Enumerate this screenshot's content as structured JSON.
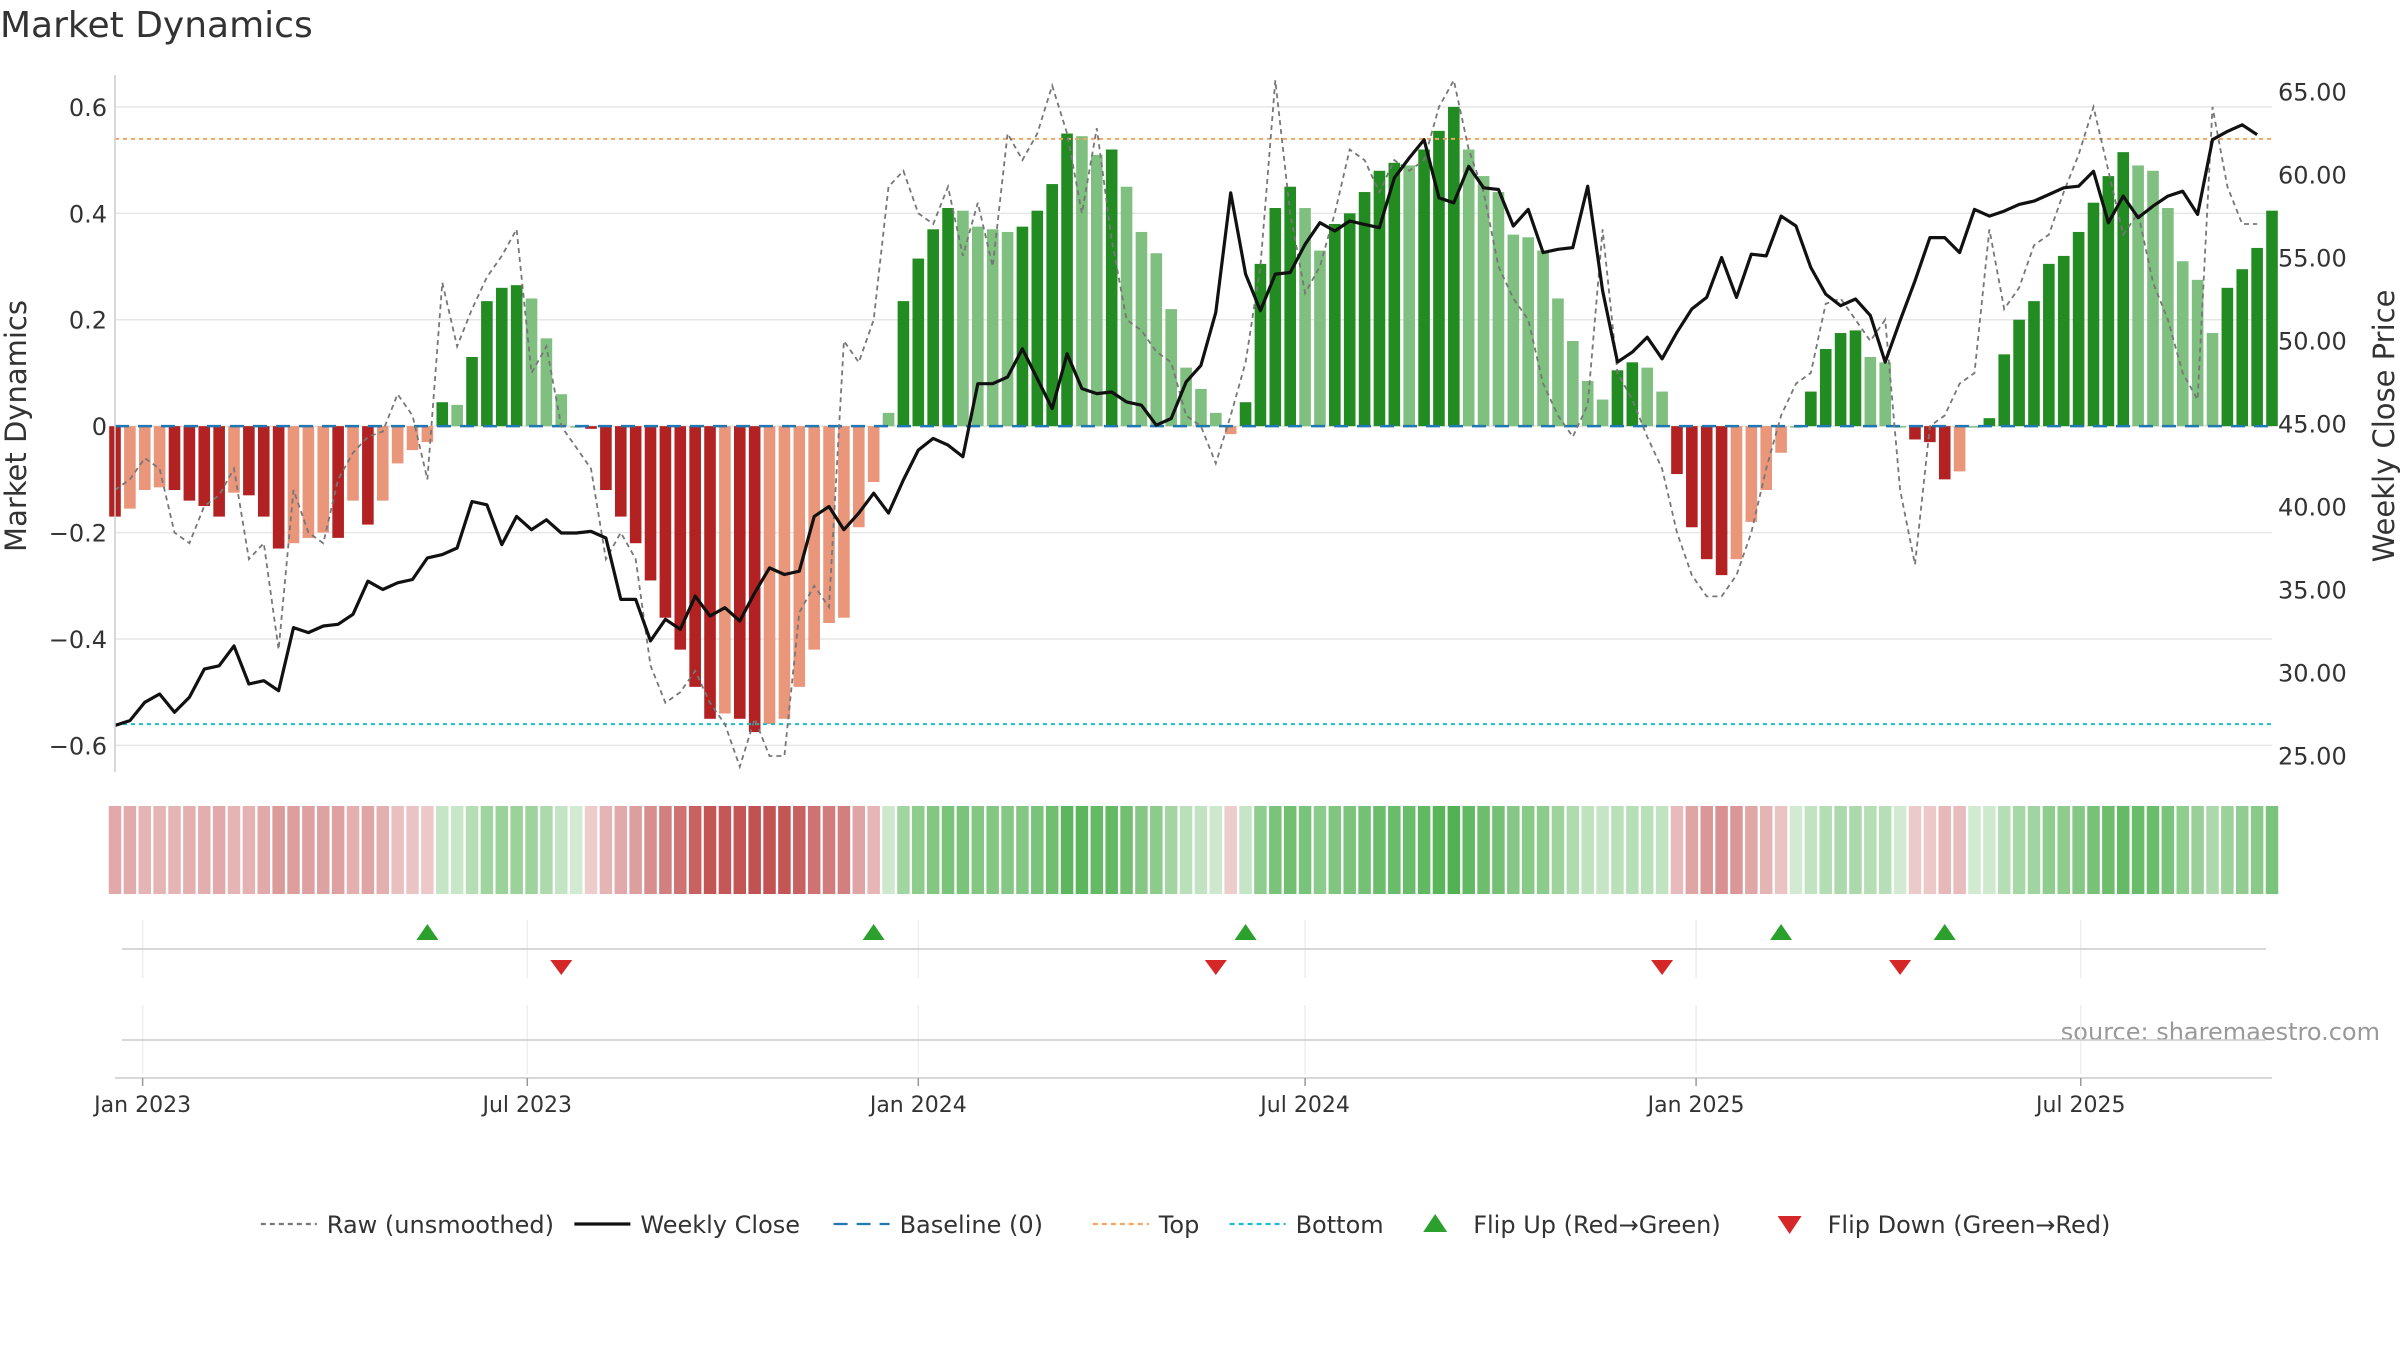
{
  "chart_data": {
    "type": "bar",
    "title": "Market Dynamics",
    "ylabel": "Market Dynamics",
    "y2label": "Weekly Close Price",
    "ylim": [
      -0.65,
      0.66
    ],
    "y2lim": [
      24.0,
      66.0
    ],
    "yticks": [
      -0.6,
      -0.4,
      -0.2,
      0,
      0.2,
      0.4,
      0.6
    ],
    "ytick_labels": [
      "−0.6",
      "−0.4",
      "−0.2",
      "0",
      "0.2",
      "0.4",
      "0.6"
    ],
    "y2ticks": [
      25,
      30,
      35,
      40,
      45,
      50,
      55,
      60,
      65
    ],
    "y2tick_labels": [
      "25.00",
      "30.00",
      "35.00",
      "40.00",
      "45.00",
      "50.00",
      "55.00",
      "60.00",
      "65.00"
    ],
    "x_range": [
      "2022-12-19",
      "2025-09-29"
    ],
    "first_week": "2022-12-19",
    "xticks": [
      {
        "date": "2023-01-01",
        "label": "Jan 2023"
      },
      {
        "date": "2023-07-01",
        "label": "Jul 2023"
      },
      {
        "date": "2024-01-01",
        "label": "Jan 2024"
      },
      {
        "date": "2024-07-01",
        "label": "Jul 2024"
      },
      {
        "date": "2025-01-01",
        "label": "Jan 2025"
      },
      {
        "date": "2025-07-01",
        "label": "Jul 2025"
      }
    ],
    "top_level": 0.54,
    "bottom_level": -0.56,
    "baseline": 0,
    "grid": true,
    "legend_position": "bottom-center",
    "source_note": "source: sharemaestro.com",
    "colors": {
      "strong_green": "#228b22",
      "light_green": "#7fbf7f",
      "strong_red": "#b22222",
      "light_red": "#e9967a",
      "close_line": "#111111",
      "raw_line": "#777777",
      "baseline": "#1f77b4",
      "top": "#f4a460",
      "bottom": "#17becf",
      "flip_up": "#2ca02c",
      "flip_down": "#d62728",
      "regime_green": "#2ca02c",
      "regime_red": "#b22222"
    },
    "series": [
      {
        "name": "Market Dynamics (smoothed)",
        "values": [
          -0.17,
          -0.155,
          -0.12,
          -0.115,
          -0.12,
          -0.14,
          -0.15,
          -0.17,
          -0.125,
          -0.13,
          -0.17,
          -0.23,
          -0.22,
          -0.21,
          -0.2,
          -0.21,
          -0.14,
          -0.185,
          -0.14,
          -0.07,
          -0.045,
          -0.03,
          0.045,
          0.04,
          0.13,
          0.235,
          0.26,
          0.265,
          0.24,
          0.165,
          0.06,
          0,
          -0.005,
          -0.12,
          -0.17,
          -0.22,
          -0.29,
          -0.36,
          -0.42,
          -0.49,
          -0.55,
          -0.54,
          -0.55,
          -0.575,
          -0.56,
          -0.55,
          -0.49,
          -0.42,
          -0.37,
          -0.36,
          -0.19,
          -0.105,
          0.025,
          0.235,
          0.315,
          0.37,
          0.41,
          0.405,
          0.375,
          0.37,
          0.365,
          0.375,
          0.405,
          0.455,
          0.55,
          0.545,
          0.51,
          0.52,
          0.45,
          0.365,
          0.325,
          0.22,
          0.11,
          0.07,
          0.025,
          -0.015,
          0.045,
          0.305,
          0.41,
          0.45,
          0.41,
          0.33,
          0.38,
          0.4,
          0.44,
          0.48,
          0.495,
          0.49,
          0.52,
          0.555,
          0.6,
          0.52,
          0.47,
          0.44,
          0.36,
          0.355,
          0.33,
          0.24,
          0.16,
          0.085,
          0.05,
          0.105,
          0.12,
          0.11,
          0.065,
          -0.09,
          -0.19,
          -0.25,
          -0.28,
          -0.25,
          -0.18,
          -0.12,
          -0.05,
          0,
          0.065,
          0.145,
          0.175,
          0.18,
          0.13,
          0.12,
          0,
          -0.025,
          -0.03,
          -0.1,
          -0.085,
          0,
          0.015,
          0.135,
          0.2,
          0.235,
          0.305,
          0.32,
          0.365,
          0.42,
          0.47,
          0.515,
          0.49,
          0.48,
          0.41,
          0.31,
          0.275,
          0.175,
          0.26,
          0.295,
          0.335,
          0.405
        ]
      },
      {
        "name": "Raw (unsmoothed)",
        "values": [
          -0.12,
          -0.1,
          -0.06,
          -0.08,
          -0.2,
          -0.22,
          -0.15,
          -0.13,
          -0.08,
          -0.25,
          -0.22,
          -0.42,
          -0.12,
          -0.2,
          -0.22,
          -0.1,
          -0.05,
          -0.02,
          -0.01,
          0.06,
          0.02,
          -0.1,
          0.27,
          0.15,
          0.22,
          0.28,
          0.32,
          0.37,
          0.1,
          0.15,
          0,
          -0.04,
          -0.08,
          -0.25,
          -0.2,
          -0.25,
          -0.45,
          -0.52,
          -0.5,
          -0.46,
          -0.52,
          -0.56,
          -0.64,
          -0.55,
          -0.62,
          -0.62,
          -0.35,
          -0.3,
          -0.34,
          0.16,
          0.12,
          0.2,
          0.45,
          0.48,
          0.4,
          0.38,
          0.45,
          0.32,
          0.42,
          0.3,
          0.55,
          0.5,
          0.55,
          0.64,
          0.55,
          0.4,
          0.56,
          0.35,
          0.2,
          0.18,
          0.14,
          0.12,
          0.02,
          0,
          -0.07,
          0.02,
          0.12,
          0.3,
          0.65,
          0.4,
          0.25,
          0.3,
          0.4,
          0.52,
          0.5,
          0.44,
          0.5,
          0.48,
          0.5,
          0.6,
          0.65,
          0.52,
          0.44,
          0.3,
          0.24,
          0.2,
          0.08,
          0.02,
          -0.02,
          0.04,
          0.37,
          0.1,
          0.05,
          -0.02,
          -0.08,
          -0.2,
          -0.28,
          -0.32,
          -0.32,
          -0.28,
          -0.2,
          -0.08,
          0.02,
          0.08,
          0.1,
          0.23,
          0.24,
          0.2,
          0.16,
          0.2,
          -0.12,
          -0.26,
          0,
          0.02,
          0.08,
          0.1,
          0.37,
          0.22,
          0.26,
          0.34,
          0.36,
          0.44,
          0.51,
          0.6,
          0.48,
          0.36,
          0.4,
          0.27,
          0.2,
          0.1,
          0.05,
          0.6,
          0.45,
          0.38,
          0.38
        ]
      },
      {
        "name": "Weekly Close",
        "values": [
          26.8,
          27.1,
          28.2,
          28.7,
          27.6,
          28.5,
          30.2,
          30.4,
          31.6,
          29.3,
          29.5,
          28.9,
          32.7,
          32.4,
          32.8,
          32.9,
          33.5,
          35.5,
          35,
          35.4,
          35.6,
          36.9,
          37.1,
          37.5,
          40.3,
          40.1,
          37.7,
          39.4,
          38.6,
          39.2,
          38.4,
          38.4,
          38.5,
          38.1,
          34.4,
          34.4,
          31.9,
          33.2,
          32.6,
          34.6,
          33.4,
          33.9,
          33.1,
          34.8,
          36.3,
          35.9,
          36.1,
          39.4,
          40,
          38.6,
          39.6,
          40.8,
          39.6,
          41.6,
          43.4,
          44.1,
          43.7,
          43,
          47.4,
          47.4,
          47.8,
          49.5,
          47.7,
          45.9,
          49.2,
          47.1,
          46.8,
          46.9,
          46.3,
          46.1,
          44.9,
          45.3,
          47.5,
          48.5,
          51.7,
          58.9,
          54,
          51.8,
          54,
          54.1,
          55.8,
          57.1,
          56.6,
          57.2,
          57,
          56.8,
          59.8,
          61,
          62.1,
          58.6,
          58.3,
          60.5,
          59.2,
          59.1,
          56.9,
          57.9,
          55.3,
          55.5,
          55.6,
          59.3,
          53,
          48.7,
          49.3,
          50.2,
          48.9,
          50.5,
          51.9,
          52.6,
          55,
          52.6,
          55.2,
          55.1,
          57.5,
          56.9,
          54.4,
          52.8,
          52.1,
          52.5,
          51.5,
          48.7,
          51.2,
          53.6,
          56.2,
          56.2,
          55.3,
          57.9,
          57.5,
          57.8,
          58.2,
          58.4,
          58.8,
          59.2,
          59.3,
          60.2,
          57.1,
          58.7,
          57.4,
          58.1,
          58.7,
          59,
          57.6,
          62.1,
          62.6,
          63,
          62.4
        ]
      }
    ],
    "flip_up_indices": [
      21,
      51,
      76,
      112,
      123
    ],
    "flip_down_indices": [
      30,
      74,
      104,
      120
    ],
    "legend": [
      {
        "label": "Raw (unsmoothed)",
        "style": "dotted",
        "color": "#777777"
      },
      {
        "label": "Weekly Close",
        "style": "solid",
        "color": "#111111"
      },
      {
        "label": "Baseline (0)",
        "style": "dashed",
        "color": "#1f77b4"
      },
      {
        "label": "Top",
        "style": "dotted",
        "color": "#f4a460"
      },
      {
        "label": "Bottom",
        "style": "dotted",
        "color": "#17becf"
      },
      {
        "label": "Flip Up (Red→Green)",
        "style": "triangle-up",
        "color": "#2ca02c"
      },
      {
        "label": "Flip Down (Green→Red)",
        "style": "triangle-down",
        "color": "#d62728"
      }
    ]
  }
}
